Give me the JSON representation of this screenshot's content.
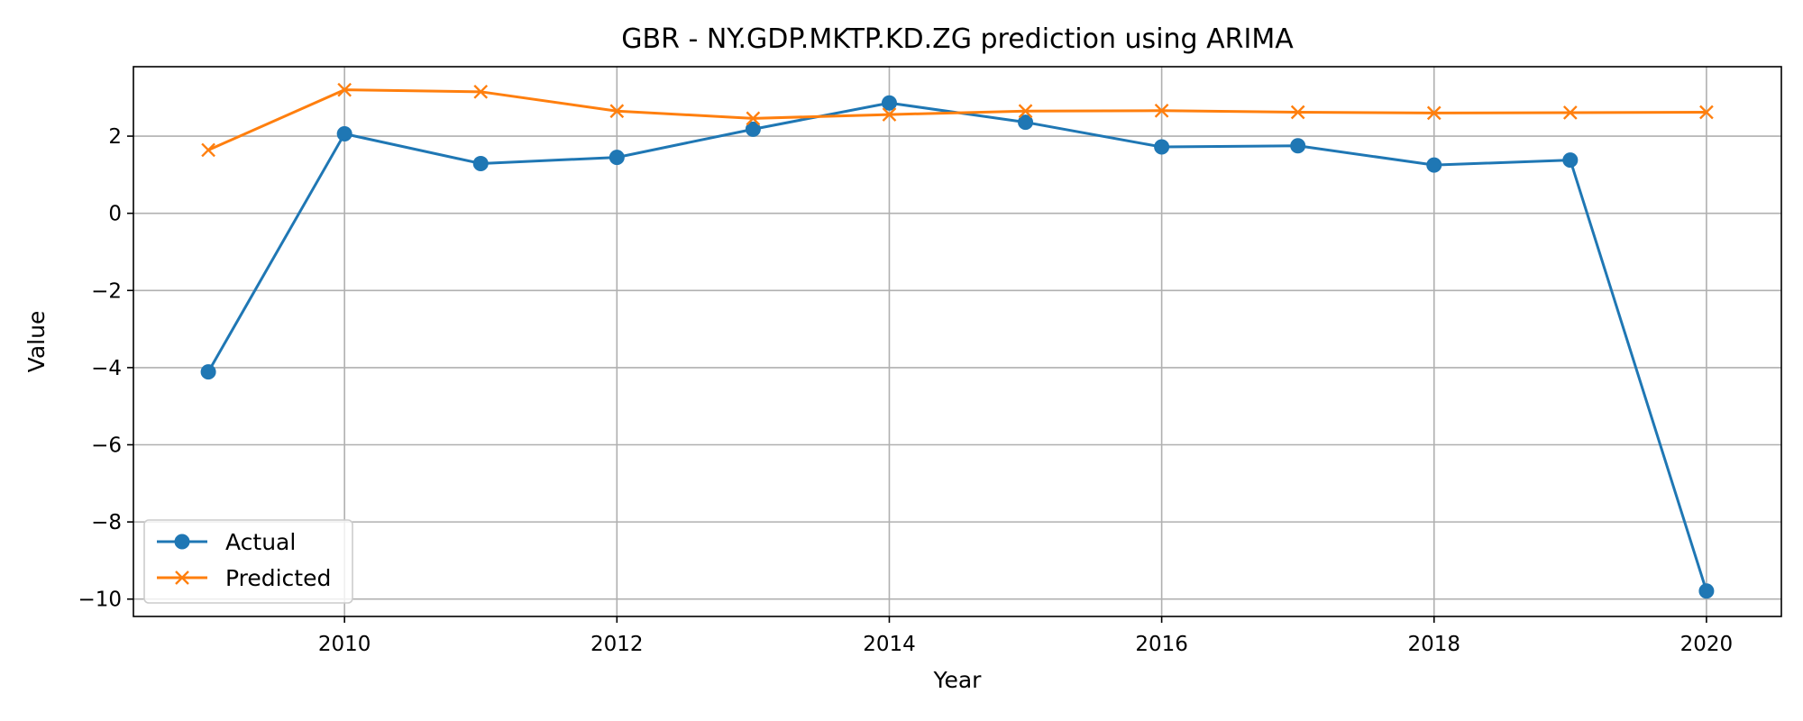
{
  "chart_data": {
    "type": "line",
    "title": "GBR - NY.GDP.MKTP.KD.ZG prediction using ARIMA",
    "xlabel": "Year",
    "ylabel": "Value",
    "x": [
      2009,
      2010,
      2011,
      2012,
      2013,
      2014,
      2015,
      2016,
      2017,
      2018,
      2019,
      2020
    ],
    "xlim": [
      2008.45,
      2020.55
    ],
    "ylim": [
      -10.45,
      3.8
    ],
    "xticks": [
      "2010",
      "2012",
      "2014",
      "2016",
      "2018",
      "2020"
    ],
    "yticks": [
      "2",
      "0",
      "−2",
      "−4",
      "−6",
      "−8",
      "−10"
    ],
    "grid": true,
    "legend_position": "lower-left",
    "series": [
      {
        "name": "Actual",
        "color": "#1f77b4",
        "marker": "circle",
        "values": [
          -4.11,
          2.06,
          1.29,
          1.45,
          2.18,
          2.86,
          2.36,
          1.72,
          1.75,
          1.25,
          1.38,
          -9.79
        ]
      },
      {
        "name": "Predicted",
        "color": "#ff7f0e",
        "marker": "x",
        "values": [
          1.64,
          3.2,
          3.15,
          2.65,
          2.46,
          2.56,
          2.65,
          2.66,
          2.62,
          2.6,
          2.61,
          2.62
        ]
      }
    ]
  }
}
